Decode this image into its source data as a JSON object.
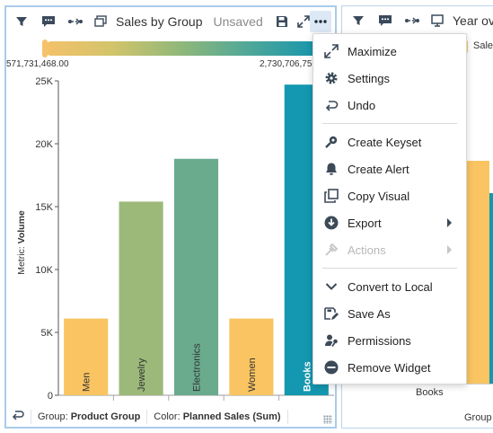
{
  "widget1": {
    "title": "Sales by Group",
    "status": "Unsaved",
    "gradient": {
      "min_label": "571,731,468.00",
      "max_label": "2,730,706,75",
      "colors": [
        "#f5c16a",
        "#1595ad"
      ]
    },
    "y_axis_title_prefix": "Metric: ",
    "y_axis_title_value": "Volume",
    "footer": {
      "group_prefix": "Group: ",
      "group_value": "Product Group",
      "color_prefix": "Color: ",
      "color_value": "Planned Sales (Sum)"
    }
  },
  "widget2": {
    "title": "Year ov",
    "legend_partial": "Sale",
    "x_label": "Books",
    "footer_partial": "Group"
  },
  "chart_data": {
    "type": "bar",
    "categories": [
      "Men",
      "Jewelry",
      "Electronics",
      "Women",
      "Books"
    ],
    "values": [
      6100,
      15400,
      18800,
      6100,
      24700
    ],
    "colors": [
      "#f9c461",
      "#9cb97a",
      "#6aab8e",
      "#f9c461",
      "#1497b0"
    ],
    "ylim": [
      0,
      25000
    ],
    "yticks": [
      "0",
      "5K",
      "10K",
      "15K",
      "20K",
      "25K"
    ],
    "xlabel": "",
    "ylabel": "Metric: Volume"
  },
  "menu": {
    "items": [
      {
        "label": "Maximize",
        "icon": "maximize-icon",
        "disabled": false,
        "submenu": false
      },
      {
        "label": "Settings",
        "icon": "gear-icon",
        "disabled": false,
        "submenu": false
      },
      {
        "label": "Undo",
        "icon": "undo-icon",
        "disabled": false,
        "submenu": false
      },
      {
        "label": "Create Keyset",
        "icon": "key-icon",
        "disabled": false,
        "submenu": false
      },
      {
        "label": "Create Alert",
        "icon": "bell-icon",
        "disabled": false,
        "submenu": false
      },
      {
        "label": "Copy Visual",
        "icon": "copy-icon",
        "disabled": false,
        "submenu": false
      },
      {
        "label": "Export",
        "icon": "download-icon",
        "disabled": false,
        "submenu": true
      },
      {
        "label": "Actions",
        "icon": "actions-icon",
        "disabled": true,
        "submenu": true
      },
      {
        "label": "Convert to Local",
        "icon": "chevron-down-icon",
        "disabled": false,
        "submenu": false
      },
      {
        "label": "Save As",
        "icon": "save-as-icon",
        "disabled": false,
        "submenu": false
      },
      {
        "label": "Permissions",
        "icon": "user-key-icon",
        "disabled": false,
        "submenu": false
      },
      {
        "label": "Remove Widget",
        "icon": "remove-icon",
        "disabled": false,
        "submenu": false
      }
    ]
  }
}
